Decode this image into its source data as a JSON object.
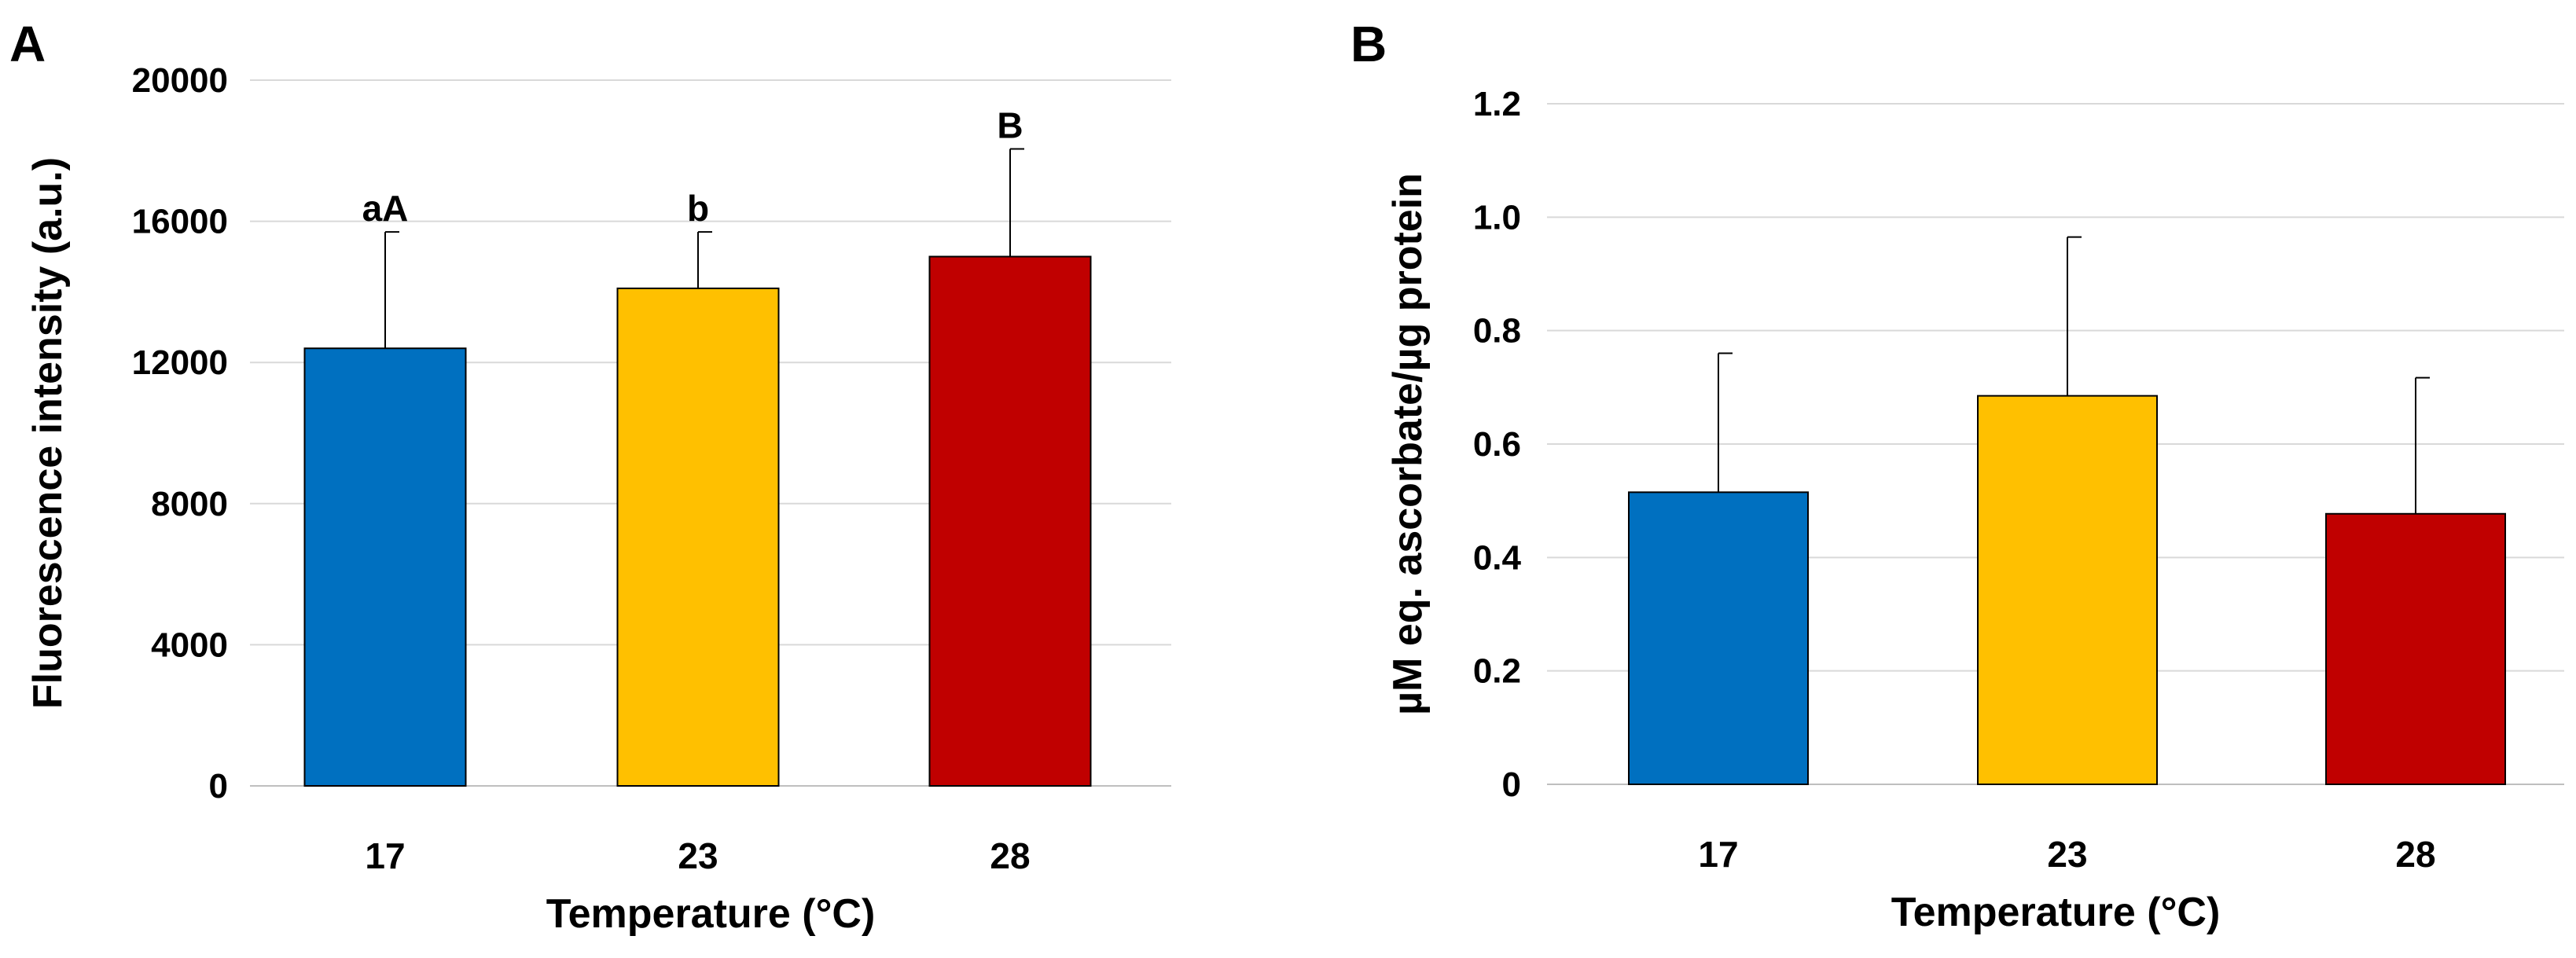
{
  "chart_data": [
    {
      "panel": "A",
      "type": "bar",
      "title": "",
      "xlabel": "Temperature (°C)",
      "ylabel": "Fluorescence intensity (a.u.)",
      "categories": [
        "17",
        "23",
        "28"
      ],
      "values": [
        12400,
        14100,
        15000
      ],
      "error_upper": [
        3300,
        1600,
        3050
      ],
      "annotations": [
        "aA",
        "b",
        "B"
      ],
      "colors": [
        "#0070C0",
        "#FFC000",
        "#C00000"
      ],
      "ylim": [
        0,
        20000
      ],
      "yticks": [
        0,
        4000,
        8000,
        12000,
        16000,
        20000
      ],
      "ytick_labels": [
        "0",
        "4000",
        "8000",
        "12000",
        "16000",
        "20000"
      ],
      "grid": true,
      "legend": "none"
    },
    {
      "panel": "B",
      "type": "bar",
      "title": "",
      "xlabel": "Temperature (°C)",
      "ylabel": "µM eq. ascorbate/µg protein",
      "categories": [
        "17",
        "23",
        "28"
      ],
      "values": [
        0.515,
        0.685,
        0.477
      ],
      "error_upper": [
        0.245,
        0.28,
        0.24
      ],
      "annotations": [
        "",
        "",
        ""
      ],
      "colors": [
        "#0070C0",
        "#FFC000",
        "#C00000"
      ],
      "ylim": [
        0,
        1.2
      ],
      "yticks": [
        0,
        0.2,
        0.4,
        0.6,
        0.8,
        1.0,
        1.2
      ],
      "ytick_labels": [
        "0",
        "0.2",
        "0.4",
        "0.6",
        "0.8",
        "1.0",
        "1.2"
      ],
      "grid": true,
      "legend": "none"
    }
  ]
}
